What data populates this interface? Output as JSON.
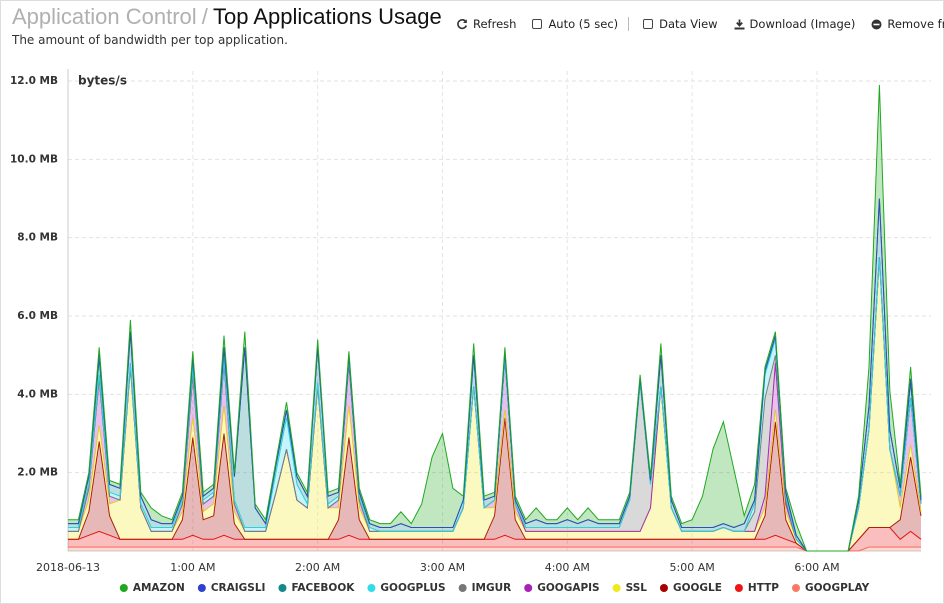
{
  "header": {
    "breadcrumb": "Application Control",
    "separator": "/",
    "title": "Top Applications Usage",
    "subtitle": "The amount of bandwidth per top application."
  },
  "toolbar": [
    "Refresh",
    "Auto (5 sec)",
    "Data View",
    "Download (Image)",
    "Remove fr"
  ],
  "chart_data": {
    "type": "stacked-area",
    "y_label": "bytes/s",
    "ylim": [
      0,
      12
    ],
    "yticks": [
      {
        "value": 2,
        "label": "2.0 MB"
      },
      {
        "value": 4,
        "label": "4.0 MB"
      },
      {
        "value": 6,
        "label": "6.0 MB"
      },
      {
        "value": 8,
        "label": "8.0 MB"
      },
      {
        "value": 10,
        "label": "10.0 MB"
      },
      {
        "value": 12,
        "label": "12.0 MB"
      }
    ],
    "xlim": [
      0,
      410
    ],
    "xticks": [
      {
        "value": 0,
        "label": "2018-06-13"
      },
      {
        "value": 60,
        "label": "1:00 AM"
      },
      {
        "value": 120,
        "label": "2:00 AM"
      },
      {
        "value": 180,
        "label": "3:00 AM"
      },
      {
        "value": 240,
        "label": "4:00 AM"
      },
      {
        "value": 300,
        "label": "5:00 AM"
      },
      {
        "value": 360,
        "label": "6:00 AM"
      }
    ],
    "grid": true,
    "x": [
      0,
      5,
      10,
      15,
      20,
      25,
      30,
      35,
      40,
      45,
      50,
      55,
      60,
      65,
      70,
      75,
      80,
      85,
      90,
      95,
      100,
      105,
      110,
      115,
      120,
      125,
      130,
      135,
      140,
      145,
      150,
      155,
      160,
      165,
      170,
      175,
      180,
      185,
      190,
      195,
      200,
      205,
      210,
      215,
      220,
      225,
      230,
      235,
      240,
      245,
      250,
      255,
      260,
      265,
      270,
      275,
      280,
      285,
      290,
      295,
      300,
      305,
      310,
      315,
      320,
      325,
      330,
      335,
      340,
      345,
      350,
      355,
      360,
      365,
      370,
      375,
      380,
      385,
      390,
      395,
      400,
      405,
      410
    ],
    "series": [
      {
        "name": "AMAZON",
        "color": "#1fa81f",
        "values": [
          0.1,
          0.1,
          0.1,
          0.1,
          0.1,
          0.1,
          0.3,
          0.1,
          0.3,
          0.2,
          0.1,
          0.1,
          0.1,
          0.1,
          0.1,
          0.3,
          0.1,
          0.4,
          0.1,
          0.1,
          0.1,
          0.2,
          0.1,
          0.1,
          0.2,
          0.1,
          0.1,
          0.1,
          0.1,
          0.1,
          0.1,
          0.1,
          0.3,
          0.1,
          0.6,
          1.8,
          2.4,
          1.0,
          0.1,
          0.3,
          0.1,
          0.1,
          0.1,
          0.1,
          0.1,
          0.3,
          0.1,
          0.1,
          0.3,
          0.1,
          0.3,
          0.1,
          0.1,
          0.1,
          0.1,
          0.1,
          0.1,
          0.3,
          0.1,
          0.1,
          0.2,
          0.8,
          2.0,
          2.6,
          1.5,
          0.2,
          0.4,
          0.1,
          0.1,
          0.1,
          0.3,
          0,
          0,
          0,
          0,
          0,
          0.1,
          1.0,
          2.9,
          1.0,
          0.1,
          0.3,
          0.1
        ]
      },
      {
        "name": "CRAIGSLI",
        "color": "#3040d0",
        "values": [
          0,
          0,
          0,
          0.2,
          0,
          0,
          0,
          0,
          0,
          0,
          0,
          0,
          0.1,
          0,
          0,
          0,
          0,
          0,
          0,
          0,
          0,
          0,
          0,
          0,
          0,
          0,
          0,
          0,
          0,
          0,
          0,
          0,
          0,
          0,
          0,
          0,
          0,
          0,
          0,
          0,
          0,
          0,
          0,
          0,
          0,
          0,
          0,
          0,
          0,
          0,
          0,
          0,
          0,
          0,
          0,
          0,
          0,
          0,
          0,
          0,
          0,
          0,
          0,
          0,
          0,
          0,
          0,
          0,
          0,
          0,
          0,
          0,
          0,
          0,
          0,
          0,
          0,
          0,
          0,
          0,
          0,
          0.1,
          0
        ]
      },
      {
        "name": "FACEBOOK",
        "color": "#138a8a",
        "values": [
          0.1,
          0.1,
          0.2,
          0.4,
          0.2,
          0.2,
          0.8,
          0.2,
          0.2,
          0.1,
          0.1,
          0.1,
          0.2,
          0.1,
          0.1,
          0.3,
          0.6,
          4.6,
          0.5,
          0.1,
          0.2,
          0.2,
          0.2,
          0.2,
          0.9,
          0.2,
          0.1,
          0.1,
          0.1,
          0.1,
          0.1,
          0.1,
          0.2,
          0.1,
          0.1,
          0.1,
          0.1,
          0.1,
          0.2,
          0.8,
          0.2,
          0.1,
          0.2,
          0.1,
          0.1,
          0.2,
          0.1,
          0.1,
          0.2,
          0.1,
          0.2,
          0.1,
          0.1,
          0.1,
          0.1,
          0.1,
          0.1,
          0.8,
          0.2,
          0.1,
          0.1,
          0.1,
          0.1,
          0.1,
          0.1,
          0.2,
          0.1,
          0.1,
          0.1,
          0.1,
          0.1,
          0,
          0,
          0,
          0,
          0,
          0.2,
          0.6,
          1.5,
          0.5,
          0.2,
          0.4,
          0.1
        ]
      },
      {
        "name": "GOOGPLUS",
        "color": "#2fdcec",
        "values": [
          0.1,
          0.1,
          0.1,
          0.1,
          0.1,
          0.1,
          0.1,
          0.1,
          0.1,
          0.1,
          0.1,
          0.1,
          0.2,
          0.1,
          0.1,
          0.1,
          0.1,
          0.1,
          0.1,
          0.1,
          0.5,
          0.8,
          0.4,
          0.1,
          0.1,
          0.1,
          0.1,
          0.1,
          0.1,
          0.1,
          0,
          0,
          0,
          0,
          0,
          0,
          0,
          0,
          0,
          0,
          0,
          0,
          0,
          0,
          0,
          0,
          0,
          0,
          0,
          0,
          0,
          0,
          0,
          0,
          0,
          0,
          0,
          0,
          0,
          0,
          0,
          0,
          0,
          0,
          0,
          0,
          0.2,
          0.6,
          0.4,
          0.1,
          0,
          0,
          0,
          0,
          0,
          0,
          0,
          0,
          0,
          0,
          0,
          0,
          0
        ]
      },
      {
        "name": "IMGUR",
        "color": "#777777",
        "values": [
          0,
          0,
          0,
          0,
          0,
          0,
          0,
          0,
          0,
          0,
          0,
          0,
          0,
          0,
          0,
          0,
          0,
          0,
          0,
          0,
          0,
          0,
          0,
          0,
          0,
          0,
          0,
          0,
          0,
          0,
          0,
          0,
          0,
          0,
          0,
          0,
          0,
          0,
          0,
          0,
          0,
          0,
          0,
          0,
          0.1,
          0.1,
          0.1,
          0.1,
          0.1,
          0.1,
          0.1,
          0.1,
          0.1,
          0.1,
          0.8,
          3.8,
          0.6,
          0,
          0,
          0,
          0,
          0,
          0,
          0,
          0,
          0,
          0.5,
          2.5,
          0.2,
          0.1,
          0,
          0,
          0,
          0,
          0,
          0,
          0,
          0,
          0,
          0,
          0,
          0,
          0
        ]
      },
      {
        "name": "GOOGAPIS",
        "color": "#a820b8",
        "values": [
          0,
          0,
          0.3,
          1.2,
          0.2,
          0,
          0,
          0,
          0,
          0,
          0,
          0.2,
          1.1,
          0.2,
          0.2,
          1.1,
          0.2,
          0,
          0,
          0,
          0,
          0,
          0,
          0,
          0,
          0,
          0.2,
          1.1,
          0.2,
          0,
          0,
          0,
          0,
          0,
          0,
          0,
          0,
          0,
          0,
          0,
          0,
          0.2,
          1.3,
          0.2,
          0,
          0,
          0,
          0,
          0,
          0,
          0,
          0,
          0,
          0,
          0,
          0,
          0,
          0,
          0,
          0,
          0,
          0,
          0,
          0,
          0,
          0,
          0,
          0.3,
          1.2,
          0.2,
          0,
          0,
          0,
          0,
          0,
          0,
          0,
          0,
          0,
          0,
          0.3,
          1.2,
          0.2
        ]
      },
      {
        "name": "SSL",
        "color": "#f0ea1c",
        "values": [
          0.2,
          0.2,
          0.3,
          0.4,
          0.3,
          1.0,
          4.4,
          0.8,
          0.2,
          0.2,
          0.2,
          0.2,
          0.5,
          0.2,
          0.3,
          0.7,
          0.3,
          0.2,
          0.2,
          0.2,
          1.2,
          2.3,
          1.0,
          0.8,
          3.9,
          0.8,
          0.3,
          0.8,
          0.3,
          0.2,
          0.2,
          0.2,
          0.2,
          0.2,
          0.2,
          0.2,
          0.2,
          0.2,
          0.8,
          3.9,
          0.8,
          0.2,
          0.2,
          0.2,
          0.2,
          0.2,
          0.2,
          0.2,
          0.2,
          0.2,
          0.2,
          0.2,
          0.2,
          0.2,
          0.2,
          0.2,
          0.8,
          3.9,
          0.8,
          0.2,
          0.2,
          0.2,
          0.2,
          0.3,
          0.2,
          0.2,
          0.2,
          0.2,
          0.3,
          0.2,
          0.1,
          0,
          0,
          0,
          0,
          0,
          0.8,
          2.5,
          6.9,
          2.0,
          0.3,
          0.3,
          0.1
        ]
      },
      {
        "name": "GOOGLE",
        "color": "#a80000",
        "values": [
          0,
          0,
          0.6,
          2.3,
          0.5,
          0,
          0,
          0,
          0,
          0,
          0,
          0.5,
          2.5,
          0.5,
          0.6,
          2.6,
          0.4,
          0,
          0,
          0,
          0,
          0,
          0,
          0,
          0,
          0,
          0.5,
          2.5,
          0.5,
          0,
          0,
          0,
          0,
          0,
          0,
          0,
          0,
          0,
          0,
          0,
          0,
          0.6,
          3.0,
          0.5,
          0,
          0,
          0,
          0,
          0,
          0,
          0,
          0,
          0,
          0,
          0,
          0,
          0,
          0,
          0,
          0,
          0,
          0,
          0,
          0,
          0,
          0,
          0,
          0.6,
          2.9,
          0.5,
          0,
          0,
          0,
          0,
          0,
          0,
          0,
          0,
          0,
          0,
          0.5,
          1.9,
          0.6
        ]
      },
      {
        "name": "HTTP",
        "color": "#ee1515",
        "values": [
          0.2,
          0.2,
          0.3,
          0.4,
          0.3,
          0.2,
          0.2,
          0.2,
          0.2,
          0.2,
          0.2,
          0.2,
          0.3,
          0.2,
          0.2,
          0.3,
          0.2,
          0.2,
          0.2,
          0.2,
          0.2,
          0.2,
          0.2,
          0.2,
          0.2,
          0.2,
          0.2,
          0.3,
          0.2,
          0.2,
          0.2,
          0.2,
          0.2,
          0.2,
          0.2,
          0.2,
          0.2,
          0.2,
          0.2,
          0.2,
          0.2,
          0.2,
          0.3,
          0.2,
          0.2,
          0.2,
          0.2,
          0.2,
          0.2,
          0.2,
          0.2,
          0.2,
          0.2,
          0.2,
          0.2,
          0.2,
          0.2,
          0.2,
          0.2,
          0.2,
          0.2,
          0.2,
          0.2,
          0.2,
          0.2,
          0.2,
          0.2,
          0.2,
          0.3,
          0.2,
          0.1,
          0,
          0,
          0,
          0,
          0,
          0.3,
          0.5,
          0.5,
          0.5,
          0.2,
          0.4,
          0.2
        ]
      },
      {
        "name": "GOOGPLAY",
        "color": "#fa7a66",
        "values": [
          0.1,
          0.1,
          0.1,
          0.1,
          0.1,
          0.1,
          0.1,
          0.1,
          0.1,
          0.1,
          0.1,
          0.1,
          0.1,
          0.1,
          0.1,
          0.1,
          0.1,
          0.1,
          0.1,
          0.1,
          0.1,
          0.1,
          0.1,
          0.1,
          0.1,
          0.1,
          0.1,
          0.1,
          0.1,
          0.1,
          0.1,
          0.1,
          0.1,
          0.1,
          0.1,
          0.1,
          0.1,
          0.1,
          0.1,
          0.1,
          0.1,
          0.1,
          0.1,
          0.1,
          0.1,
          0.1,
          0.1,
          0.1,
          0.1,
          0.1,
          0.1,
          0.1,
          0.1,
          0.1,
          0.1,
          0.1,
          0.1,
          0.1,
          0.1,
          0.1,
          0.1,
          0.1,
          0.1,
          0.1,
          0.1,
          0.1,
          0.1,
          0.1,
          0.1,
          0.1,
          0.1,
          0,
          0,
          0,
          0,
          0,
          0,
          0.1,
          0.1,
          0.1,
          0.1,
          0.1,
          0.1
        ]
      }
    ]
  }
}
